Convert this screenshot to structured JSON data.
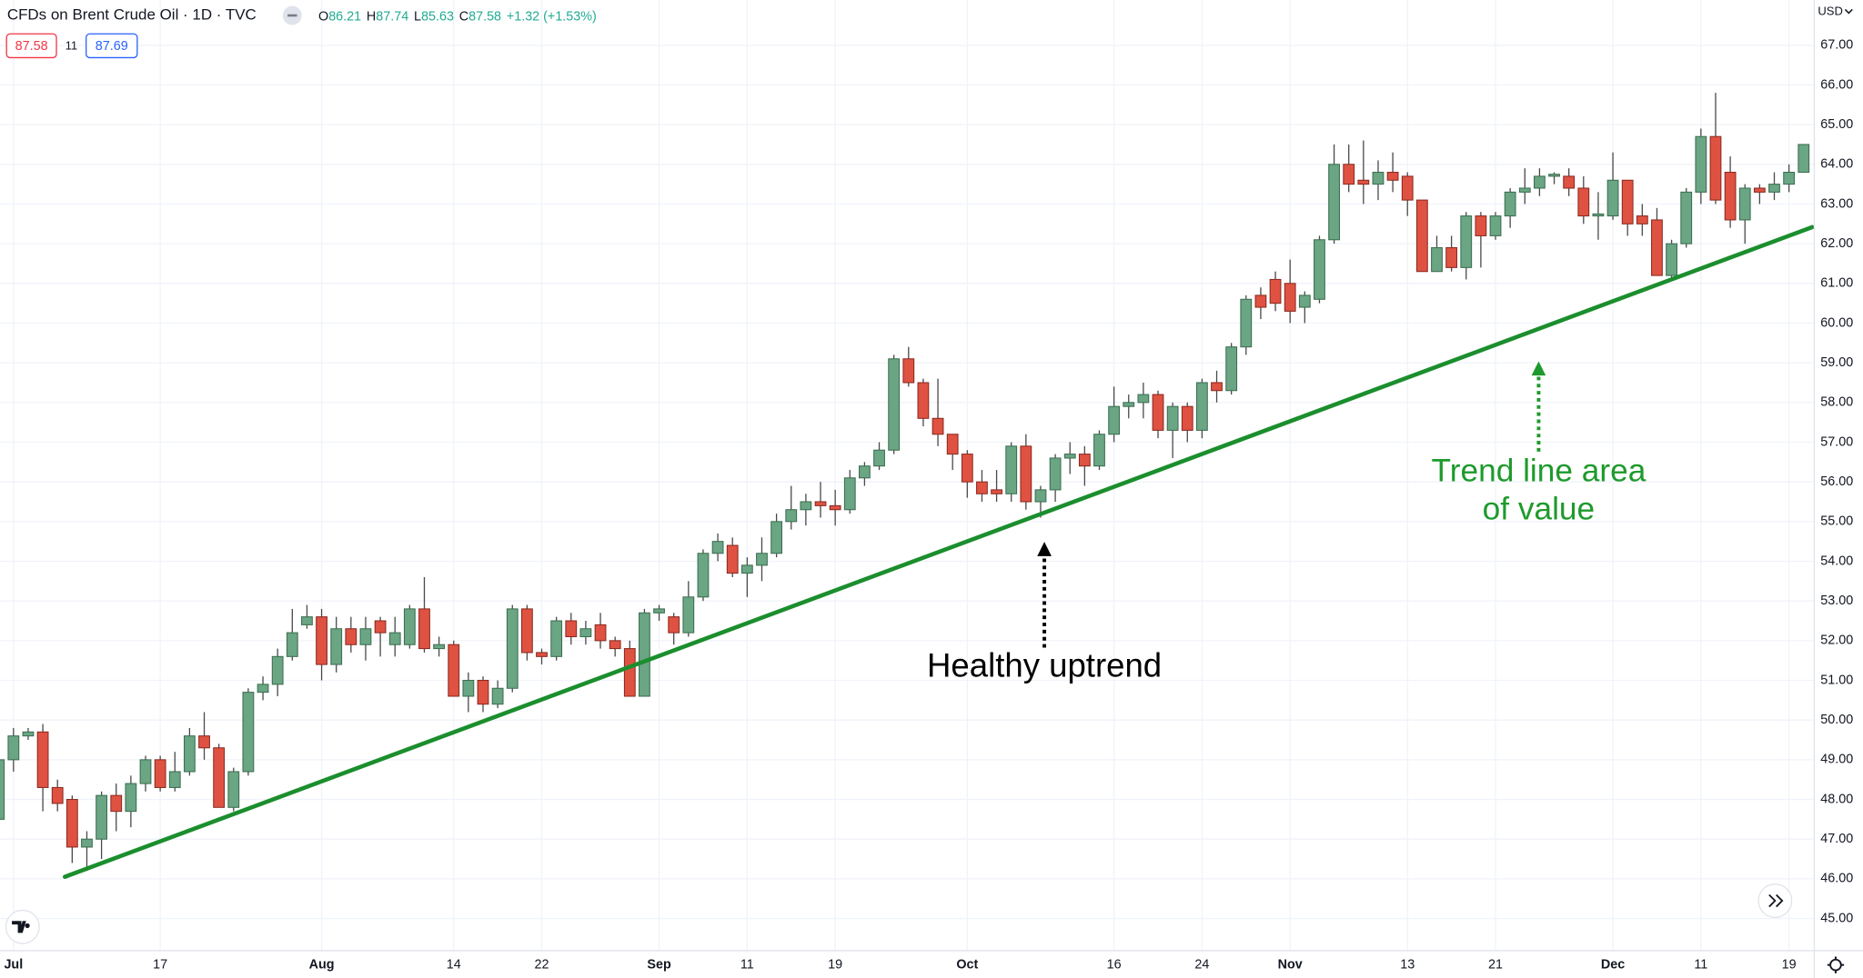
{
  "header": {
    "symbol": "CFDs on Brent Crude Oil · 1D · TVC",
    "ohlc": [
      {
        "label": "O",
        "value": "86.21"
      },
      {
        "label": "H",
        "value": "87.74"
      },
      {
        "label": "L",
        "value": "85.63"
      },
      {
        "label": "C",
        "value": "87.58"
      }
    ],
    "change": "+1.32 (+1.53%)",
    "bid": "87.58",
    "spread": "11",
    "ask": "87.69",
    "currency": "USD"
  },
  "chart_data": {
    "type": "candlestick",
    "categories": [
      null,
      "Jul",
      null,
      null,
      null,
      null,
      null,
      null,
      null,
      null,
      null,
      "17",
      null,
      null,
      null,
      null,
      null,
      null,
      null,
      null,
      null,
      null,
      "Aug",
      null,
      null,
      null,
      null,
      null,
      null,
      null,
      null,
      "14",
      null,
      null,
      null,
      null,
      null,
      "22",
      null,
      null,
      null,
      null,
      null,
      null,
      null,
      "Sep",
      null,
      null,
      null,
      null,
      null,
      "11",
      null,
      null,
      null,
      null,
      null,
      "19",
      null,
      null,
      null,
      null,
      null,
      null,
      null,
      null,
      "Oct",
      null,
      null,
      null,
      null,
      null,
      null,
      null,
      null,
      null,
      "16",
      null,
      null,
      null,
      null,
      null,
      "24",
      null,
      null,
      null,
      null,
      null,
      "Nov",
      null,
      null,
      null,
      null,
      null,
      null,
      null,
      "13",
      null,
      null,
      null,
      null,
      null,
      "21",
      null,
      null,
      null,
      null,
      null,
      null,
      null,
      "Dec",
      null,
      null,
      null,
      null,
      null,
      "11",
      null,
      null,
      null,
      null,
      null,
      "19",
      null
    ],
    "open": [
      47.5,
      49.0,
      49.6,
      49.7,
      48.3,
      48.0,
      46.8,
      47.0,
      48.1,
      47.7,
      48.4,
      49.0,
      48.3,
      48.7,
      49.6,
      49.3,
      47.8,
      48.7,
      50.7,
      50.9,
      51.6,
      52.4,
      52.6,
      51.4,
      52.3,
      51.9,
      52.5,
      51.9,
      51.9,
      52.8,
      51.8,
      51.9,
      50.6,
      51.0,
      50.4,
      50.8,
      52.8,
      51.7,
      51.6,
      52.5,
      52.1,
      52.4,
      52.0,
      51.8,
      50.6,
      52.7,
      52.6,
      52.2,
      53.1,
      54.2,
      54.4,
      53.7,
      53.9,
      54.2,
      55.0,
      55.3,
      55.5,
      55.4,
      55.3,
      56.1,
      56.4,
      56.8,
      59.1,
      58.5,
      57.6,
      57.2,
      56.7,
      56.0,
      55.8,
      55.7,
      56.9,
      55.5,
      55.8,
      56.6,
      56.7,
      56.4,
      57.2,
      57.9,
      58.0,
      58.2,
      57.3,
      57.9,
      57.3,
      58.5,
      58.3,
      59.4,
      60.7,
      61.1,
      61.0,
      60.4,
      60.6,
      62.1,
      64.0,
      63.6,
      63.5,
      63.8,
      63.7,
      63.1,
      61.3,
      61.9,
      61.4,
      62.7,
      62.2,
      62.7,
      63.3,
      63.4,
      63.7,
      63.7,
      63.4,
      62.7,
      62.7,
      63.6,
      62.7,
      62.6,
      61.2,
      62.0,
      63.3,
      64.7,
      63.8,
      62.6,
      63.4,
      63.3,
      63.5,
      63.8
    ],
    "high": [
      49.2,
      49.8,
      49.8,
      49.9,
      48.5,
      48.1,
      47.2,
      48.2,
      48.4,
      48.6,
      49.1,
      49.1,
      49.2,
      49.8,
      50.2,
      49.4,
      48.8,
      50.8,
      51.1,
      51.8,
      52.8,
      52.9,
      52.8,
      52.6,
      52.6,
      52.6,
      52.6,
      52.6,
      52.9,
      53.6,
      52.1,
      52.0,
      51.2,
      51.1,
      51.0,
      52.9,
      52.9,
      51.8,
      52.6,
      52.7,
      52.5,
      52.7,
      52.1,
      52.0,
      52.8,
      52.9,
      52.7,
      53.5,
      54.3,
      54.7,
      54.6,
      54.1,
      54.6,
      55.2,
      55.9,
      55.7,
      56.0,
      55.8,
      56.3,
      56.5,
      57.0,
      59.2,
      59.4,
      58.6,
      58.6,
      57.2,
      56.8,
      56.3,
      56.3,
      57.0,
      57.2,
      55.9,
      56.7,
      57.0,
      56.9,
      57.3,
      58.4,
      58.2,
      58.5,
      58.3,
      58.0,
      58.0,
      58.6,
      58.8,
      59.5,
      60.7,
      60.9,
      61.3,
      61.6,
      60.8,
      62.2,
      64.5,
      64.5,
      64.6,
      64.1,
      64.3,
      63.8,
      63.1,
      62.2,
      62.2,
      62.8,
      62.8,
      62.8,
      63.4,
      63.9,
      63.9,
      63.8,
      63.9,
      63.7,
      63.3,
      64.3,
      63.6,
      63.0,
      62.9,
      62.1,
      63.4,
      64.9,
      65.8,
      64.2,
      63.5,
      63.5,
      63.8,
      64.0,
      64.5
    ],
    "low": [
      47.4,
      48.7,
      49.5,
      47.7,
      47.7,
      46.4,
      46.2,
      46.5,
      47.2,
      47.3,
      48.2,
      48.2,
      48.2,
      48.6,
      49.0,
      47.8,
      47.7,
      48.6,
      50.5,
      50.6,
      51.5,
      52.3,
      51.0,
      51.2,
      51.7,
      51.5,
      51.6,
      51.6,
      51.8,
      51.7,
      51.6,
      50.6,
      50.2,
      50.2,
      50.3,
      50.7,
      51.5,
      51.4,
      51.5,
      51.9,
      51.9,
      51.8,
      51.6,
      50.6,
      50.6,
      52.5,
      51.9,
      52.1,
      53.0,
      54.0,
      53.6,
      53.1,
      53.5,
      54.1,
      54.8,
      54.9,
      55.1,
      54.9,
      55.2,
      55.9,
      56.3,
      56.7,
      58.4,
      57.4,
      56.9,
      56.3,
      55.6,
      55.5,
      55.5,
      55.5,
      55.3,
      55.1,
      55.5,
      56.2,
      55.9,
      56.3,
      57.0,
      57.6,
      57.6,
      57.1,
      56.6,
      57.0,
      57.1,
      58.0,
      58.2,
      59.2,
      60.1,
      60.3,
      60.0,
      60.0,
      60.5,
      62.0,
      63.3,
      63.0,
      63.1,
      63.3,
      62.7,
      61.3,
      61.3,
      61.3,
      61.1,
      61.4,
      62.1,
      62.4,
      63.0,
      63.2,
      63.5,
      63.2,
      62.5,
      62.1,
      62.6,
      62.2,
      62.2,
      61.2,
      61.1,
      61.9,
      63.0,
      63.0,
      62.4,
      62.0,
      63.0,
      63.1,
      63.3,
      63.8
    ],
    "close": [
      49.0,
      49.6,
      49.7,
      48.3,
      47.9,
      46.8,
      47.0,
      48.1,
      47.7,
      48.4,
      49.0,
      48.3,
      48.7,
      49.6,
      49.3,
      47.8,
      48.7,
      50.7,
      50.9,
      51.6,
      52.2,
      52.6,
      51.4,
      52.3,
      51.9,
      52.3,
      52.2,
      52.2,
      52.8,
      51.8,
      51.9,
      50.6,
      51.0,
      50.4,
      50.8,
      52.8,
      51.7,
      51.6,
      52.5,
      52.1,
      52.3,
      52.0,
      51.8,
      50.6,
      52.7,
      52.8,
      52.2,
      53.1,
      54.2,
      54.5,
      53.7,
      53.9,
      54.2,
      55.0,
      55.3,
      55.5,
      55.4,
      55.3,
      56.1,
      56.4,
      56.8,
      59.1,
      58.5,
      57.6,
      57.2,
      56.7,
      56.0,
      55.7,
      55.7,
      56.9,
      55.5,
      55.8,
      56.6,
      56.7,
      56.4,
      57.2,
      57.9,
      58.0,
      58.2,
      57.3,
      57.9,
      57.3,
      58.5,
      58.3,
      59.4,
      60.6,
      60.4,
      60.5,
      60.3,
      60.7,
      62.1,
      64.0,
      63.5,
      63.5,
      63.8,
      63.6,
      63.1,
      61.3,
      61.9,
      61.4,
      62.7,
      62.2,
      62.7,
      63.3,
      63.4,
      63.7,
      63.75,
      63.4,
      62.7,
      62.75,
      63.6,
      62.5,
      62.5,
      61.2,
      62.0,
      63.3,
      64.7,
      63.1,
      62.6,
      63.4,
      63.3,
      63.5,
      63.8,
      64.5
    ],
    "up_color": "#6aa584",
    "down_color": "#df5242",
    "ylim": [
      44.19,
      68.14
    ],
    "yticks": [
      {
        "value": 45,
        "label": "45.00"
      },
      {
        "value": 46,
        "label": "46.00"
      },
      {
        "value": 47,
        "label": "47.00"
      },
      {
        "value": 48,
        "label": "48.00"
      },
      {
        "value": 49,
        "label": "49.00"
      },
      {
        "value": 50,
        "label": "50.00"
      },
      {
        "value": 51,
        "label": "51.00"
      },
      {
        "value": 52,
        "label": "52.00"
      },
      {
        "value": 53,
        "label": "53.00"
      },
      {
        "value": 54,
        "label": "54.00"
      },
      {
        "value": 55,
        "label": "55.00"
      },
      {
        "value": 56,
        "label": "56.00"
      },
      {
        "value": 57,
        "label": "57.00"
      },
      {
        "value": 58,
        "label": "58.00"
      },
      {
        "value": 59,
        "label": "59.00"
      },
      {
        "value": 60,
        "label": "60.00"
      },
      {
        "value": 61,
        "label": "61.00"
      },
      {
        "value": 62,
        "label": "62.00"
      },
      {
        "value": 63,
        "label": "63.00"
      },
      {
        "value": 64,
        "label": "64.00"
      },
      {
        "value": 65,
        "label": "65.00"
      },
      {
        "value": 66,
        "label": "66.00"
      },
      {
        "value": 67,
        "label": "67.00"
      }
    ],
    "grid": true,
    "trendline": {
      "x": [
        4.5,
        123.6
      ],
      "y": [
        46.05,
        62.42
      ],
      "color": "#1b8e2d"
    },
    "annotations": [
      {
        "text": "Healthy uptrend"
      },
      {
        "lines": [
          "Trend line area",
          "of value"
        ]
      }
    ]
  }
}
